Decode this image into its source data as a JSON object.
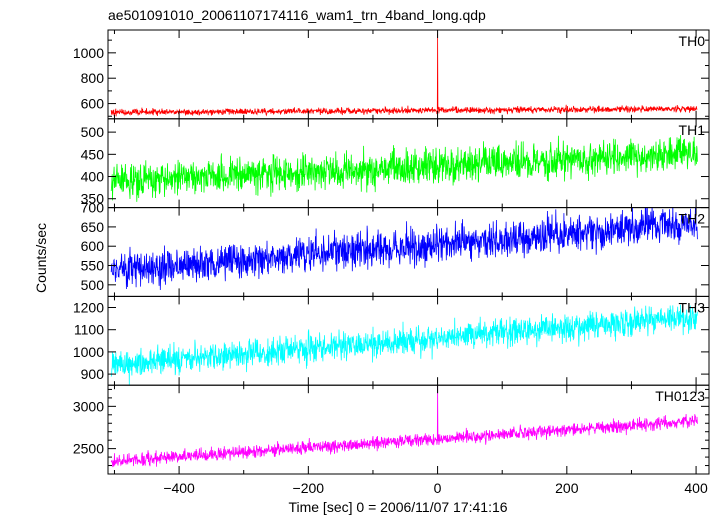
{
  "chart_data": {
    "type": "line",
    "title": "ae501091010_20061107174116_wam1_trn_4band_long.qdp",
    "xlabel": "Time [sec] 0 = 2006/11/07 17:41:16",
    "ylabel": "Counts/sec",
    "xlim": [
      -510,
      420
    ],
    "x_ticks": [
      -400,
      -200,
      0,
      200,
      400
    ],
    "x_tick_labels": [
      "−400",
      "−200",
      "0",
      "200",
      "400"
    ],
    "series": [
      {
        "name": "TH0",
        "color": "#ff0000",
        "ylim": [
          480,
          1180
        ],
        "y_ticks": [
          600,
          800,
          1000
        ],
        "y_tick_labels": [
          "600",
          "800",
          "1000"
        ],
        "y_minor": [
          500,
          700,
          900,
          1100
        ],
        "base_start": 530,
        "base_end": 560,
        "noise": 18,
        "spike": {
          "x": 0,
          "peak": 1150
        }
      },
      {
        "name": "TH1",
        "color": "#00ff00",
        "ylim": [
          330,
          530
        ],
        "y_ticks": [
          350,
          400,
          450,
          500
        ],
        "y_tick_labels": [
          "350",
          "400",
          "450",
          "500"
        ],
        "y_minor": [],
        "base_start": 390,
        "base_end": 450,
        "noise": 28,
        "spike": null
      },
      {
        "name": "TH2",
        "color": "#0000ff",
        "ylim": [
          470,
          700
        ],
        "y_ticks": [
          500,
          550,
          600,
          650,
          700
        ],
        "y_tick_labels": [
          "500",
          "550",
          "600",
          "650",
          "700"
        ],
        "y_minor": [],
        "base_start": 535,
        "base_end": 660,
        "noise": 32,
        "spike": null
      },
      {
        "name": "TH3",
        "color": "#00ffff",
        "ylim": [
          850,
          1250
        ],
        "y_ticks": [
          900,
          1000,
          1100,
          1200
        ],
        "y_tick_labels": [
          "900",
          "1000",
          "1100",
          "1200"
        ],
        "y_minor": [],
        "base_start": 940,
        "base_end": 1160,
        "noise": 45,
        "spike": null
      },
      {
        "name": "TH0123",
        "color": "#ff00ff",
        "ylim": [
          2200,
          3250
        ],
        "y_ticks": [
          2500,
          3000
        ],
        "y_tick_labels": [
          "2500",
          "3000"
        ],
        "y_minor": [
          2300,
          2400,
          2600,
          2700,
          2800,
          2900,
          3100,
          3200
        ],
        "base_start": 2350,
        "base_end": 2830,
        "noise": 55,
        "spike": {
          "x": 0,
          "peak": 3250
        }
      }
    ]
  }
}
